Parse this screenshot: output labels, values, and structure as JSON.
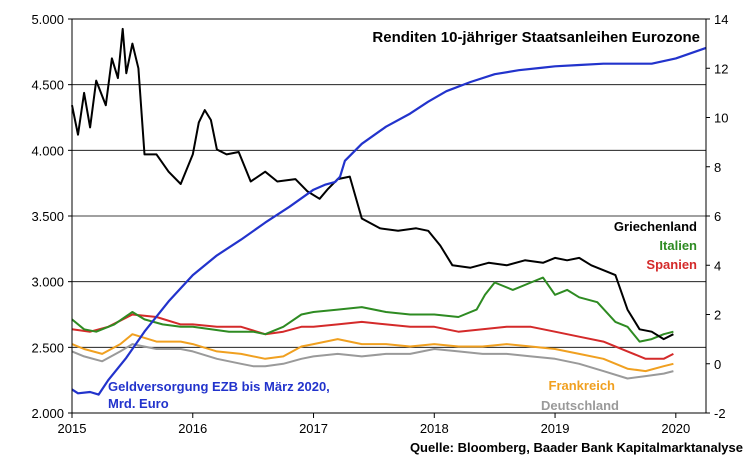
{
  "chart_data": {
    "type": "line",
    "title": "Renditen 10-jähriger Staatsanleihen Eurozone",
    "source": "Quelle: Bloomberg, Baader Bank Kapitalmarktanalyse",
    "x_ticks": [
      "2015",
      "2016",
      "2017",
      "2018",
      "2019",
      "2020"
    ],
    "y_left": {
      "ticks": [
        "5.000",
        "4.500",
        "4.000",
        "3.500",
        "3.000",
        "2.500",
        "2.000"
      ],
      "values": [
        5000,
        4500,
        4000,
        3500,
        3000,
        2500,
        2000
      ],
      "range": [
        2000,
        5000
      ]
    },
    "y_right": {
      "ticks": [
        "14",
        "12",
        "10",
        "8",
        "6",
        "4",
        "2",
        "0",
        "-2"
      ],
      "values": [
        14,
        12,
        10,
        8,
        6,
        4,
        2,
        0,
        -2
      ],
      "range": [
        -2,
        14
      ]
    },
    "x_range": [
      2015.0,
      2020.25
    ],
    "grid": true,
    "series": [
      {
        "name": "Geldversorgung EZB bis März 2020,\nMrd. Euro",
        "label_lines": [
          "Geldversorgung EZB bis März 2020,",
          "Mrd. Euro"
        ],
        "axis": "left",
        "color": "#2233cc",
        "x": [
          2015.0,
          2015.05,
          2015.15,
          2015.22,
          2015.3,
          2015.45,
          2015.6,
          2015.8,
          2016.0,
          2016.2,
          2016.4,
          2016.6,
          2016.8,
          2017.0,
          2017.1,
          2017.18,
          2017.22,
          2017.26,
          2017.4,
          2017.6,
          2017.8,
          2017.95,
          2018.1,
          2018.3,
          2018.5,
          2018.7,
          2018.9,
          2019.0,
          2019.2,
          2019.4,
          2019.6,
          2019.8,
          2020.0,
          2020.25
        ],
        "y": [
          2180,
          2150,
          2160,
          2140,
          2250,
          2420,
          2620,
          2850,
          3050,
          3200,
          3320,
          3450,
          3570,
          3700,
          3740,
          3760,
          3800,
          3920,
          4050,
          4180,
          4280,
          4370,
          4450,
          4520,
          4580,
          4610,
          4630,
          4640,
          4650,
          4660,
          4660,
          4660,
          4700,
          4780
        ]
      },
      {
        "name": "Griechenland",
        "axis": "right",
        "color": "#000000",
        "x": [
          2015.0,
          2015.05,
          2015.1,
          2015.15,
          2015.2,
          2015.28,
          2015.33,
          2015.38,
          2015.42,
          2015.45,
          2015.5,
          2015.55,
          2015.6,
          2015.7,
          2015.8,
          2015.9,
          2016.0,
          2016.05,
          2016.1,
          2016.15,
          2016.2,
          2016.28,
          2016.38,
          2016.48,
          2016.6,
          2016.7,
          2016.85,
          2016.95,
          2017.05,
          2017.12,
          2017.2,
          2017.3,
          2017.4,
          2017.55,
          2017.7,
          2017.85,
          2017.95,
          2018.05,
          2018.15,
          2018.3,
          2018.45,
          2018.6,
          2018.75,
          2018.9,
          2019.0,
          2019.1,
          2019.2,
          2019.3,
          2019.4,
          2019.5,
          2019.6,
          2019.7,
          2019.8,
          2019.9,
          2019.98
        ],
        "y": [
          10.5,
          9.3,
          11.0,
          9.6,
          11.5,
          10.5,
          12.4,
          11.6,
          13.6,
          11.8,
          13.0,
          12.0,
          8.5,
          8.5,
          7.8,
          7.3,
          8.5,
          9.8,
          10.3,
          9.9,
          8.7,
          8.5,
          8.6,
          7.4,
          7.8,
          7.4,
          7.5,
          7.0,
          6.7,
          7.1,
          7.5,
          7.6,
          5.9,
          5.5,
          5.4,
          5.5,
          5.4,
          4.8,
          4.0,
          3.9,
          4.1,
          4.0,
          4.2,
          4.1,
          4.3,
          4.2,
          4.3,
          4.0,
          3.8,
          3.6,
          2.2,
          1.4,
          1.3,
          1.0,
          1.2
        ]
      },
      {
        "name": "Italien",
        "axis": "right",
        "color": "#2e8b22",
        "x": [
          2015.0,
          2015.1,
          2015.2,
          2015.35,
          2015.5,
          2015.6,
          2015.75,
          2015.9,
          2016.0,
          2016.15,
          2016.3,
          2016.5,
          2016.6,
          2016.75,
          2016.9,
          2017.0,
          2017.2,
          2017.4,
          2017.6,
          2017.8,
          2018.0,
          2018.2,
          2018.35,
          2018.42,
          2018.5,
          2018.65,
          2018.8,
          2018.9,
          2019.0,
          2019.1,
          2019.2,
          2019.35,
          2019.5,
          2019.6,
          2019.7,
          2019.8,
          2019.9,
          2019.98
        ],
        "y": [
          1.8,
          1.4,
          1.3,
          1.6,
          2.1,
          1.8,
          1.6,
          1.5,
          1.5,
          1.4,
          1.3,
          1.3,
          1.2,
          1.5,
          2.0,
          2.1,
          2.2,
          2.3,
          2.1,
          2.0,
          2.0,
          1.9,
          2.2,
          2.8,
          3.3,
          3.0,
          3.3,
          3.5,
          2.8,
          3.0,
          2.7,
          2.5,
          1.7,
          1.5,
          0.9,
          1.0,
          1.2,
          1.3
        ]
      },
      {
        "name": "Spanien",
        "axis": "right",
        "color": "#d42a2a",
        "x": [
          2015.0,
          2015.15,
          2015.3,
          2015.5,
          2015.7,
          2015.9,
          2016.0,
          2016.2,
          2016.4,
          2016.6,
          2016.75,
          2016.9,
          2017.0,
          2017.2,
          2017.4,
          2017.6,
          2017.8,
          2018.0,
          2018.2,
          2018.4,
          2018.6,
          2018.8,
          2019.0,
          2019.2,
          2019.4,
          2019.6,
          2019.75,
          2019.9,
          2019.98
        ],
        "y": [
          1.4,
          1.3,
          1.5,
          2.0,
          1.9,
          1.6,
          1.6,
          1.5,
          1.5,
          1.2,
          1.3,
          1.5,
          1.5,
          1.6,
          1.7,
          1.6,
          1.5,
          1.5,
          1.3,
          1.4,
          1.5,
          1.5,
          1.3,
          1.1,
          0.9,
          0.5,
          0.2,
          0.2,
          0.4
        ]
      },
      {
        "name": "Frankreich",
        "axis": "right",
        "color": "#f0a020",
        "x": [
          2015.0,
          2015.1,
          2015.25,
          2015.4,
          2015.5,
          2015.7,
          2015.9,
          2016.0,
          2016.2,
          2016.4,
          2016.6,
          2016.75,
          2016.9,
          2017.0,
          2017.2,
          2017.4,
          2017.6,
          2017.8,
          2018.0,
          2018.2,
          2018.4,
          2018.6,
          2018.8,
          2019.0,
          2019.2,
          2019.4,
          2019.6,
          2019.75,
          2019.9,
          2019.98
        ],
        "y": [
          0.8,
          0.6,
          0.4,
          0.8,
          1.2,
          0.9,
          0.9,
          0.8,
          0.5,
          0.4,
          0.2,
          0.3,
          0.7,
          0.8,
          1.0,
          0.8,
          0.8,
          0.7,
          0.8,
          0.7,
          0.7,
          0.8,
          0.7,
          0.6,
          0.4,
          0.2,
          -0.2,
          -0.3,
          -0.1,
          0.0
        ]
      },
      {
        "name": "Deutschland",
        "axis": "right",
        "color": "#9a9a9a",
        "x": [
          2015.0,
          2015.1,
          2015.25,
          2015.4,
          2015.5,
          2015.7,
          2015.9,
          2016.0,
          2016.2,
          2016.4,
          2016.5,
          2016.6,
          2016.75,
          2016.9,
          2017.0,
          2017.2,
          2017.4,
          2017.6,
          2017.8,
          2018.0,
          2018.2,
          2018.4,
          2018.6,
          2018.8,
          2019.0,
          2019.2,
          2019.4,
          2019.6,
          2019.75,
          2019.9,
          2019.98
        ],
        "y": [
          0.5,
          0.3,
          0.1,
          0.5,
          0.8,
          0.6,
          0.6,
          0.5,
          0.2,
          0.0,
          -0.1,
          -0.1,
          0.0,
          0.2,
          0.3,
          0.4,
          0.3,
          0.4,
          0.4,
          0.6,
          0.5,
          0.4,
          0.4,
          0.3,
          0.2,
          0.0,
          -0.3,
          -0.6,
          -0.5,
          -0.4,
          -0.3
        ]
      }
    ]
  }
}
